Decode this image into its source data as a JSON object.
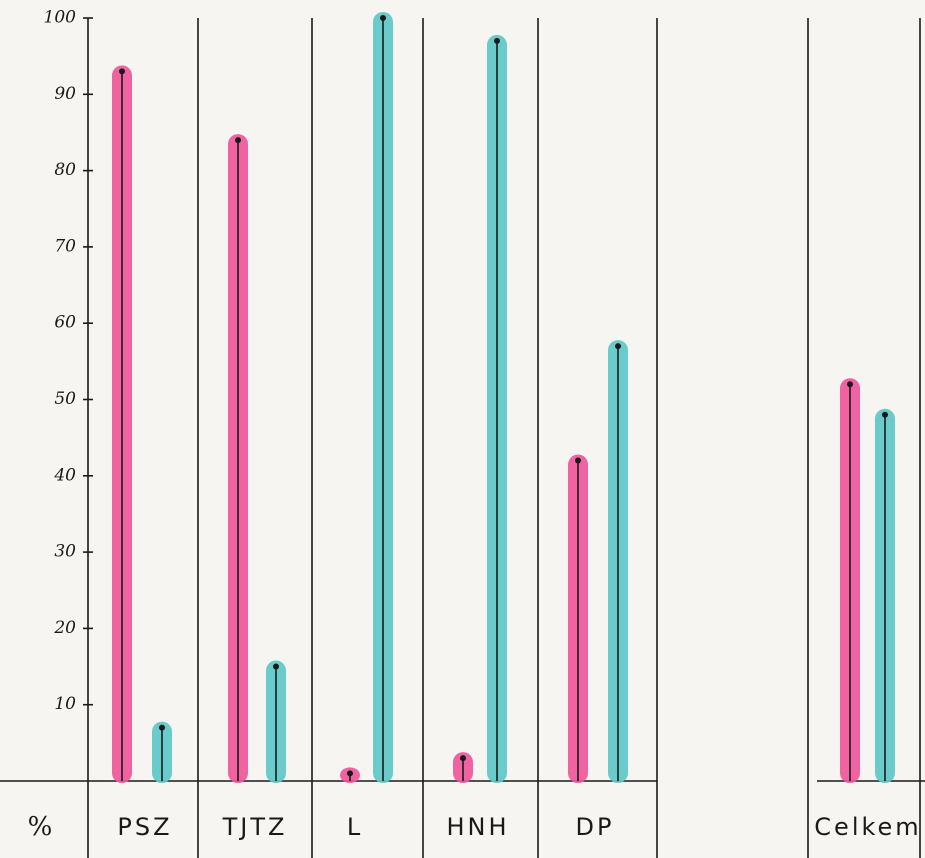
{
  "chart_data": {
    "type": "bar",
    "y_label": "%",
    "categories": [
      "PSZ",
      "TJTZ",
      "L",
      "HNH",
      "DP",
      "Celkem"
    ],
    "series": [
      {
        "color": "#f0559a",
        "values": [
          93,
          84,
          1,
          3,
          42,
          52
        ]
      },
      {
        "color": "#5cc8c8",
        "values": [
          7,
          15,
          100,
          97,
          57,
          48
        ]
      }
    ],
    "ylim": [
      0,
      100
    ],
    "yticks": [
      10,
      20,
      30,
      40,
      50,
      60,
      70,
      80,
      90,
      100
    ]
  }
}
